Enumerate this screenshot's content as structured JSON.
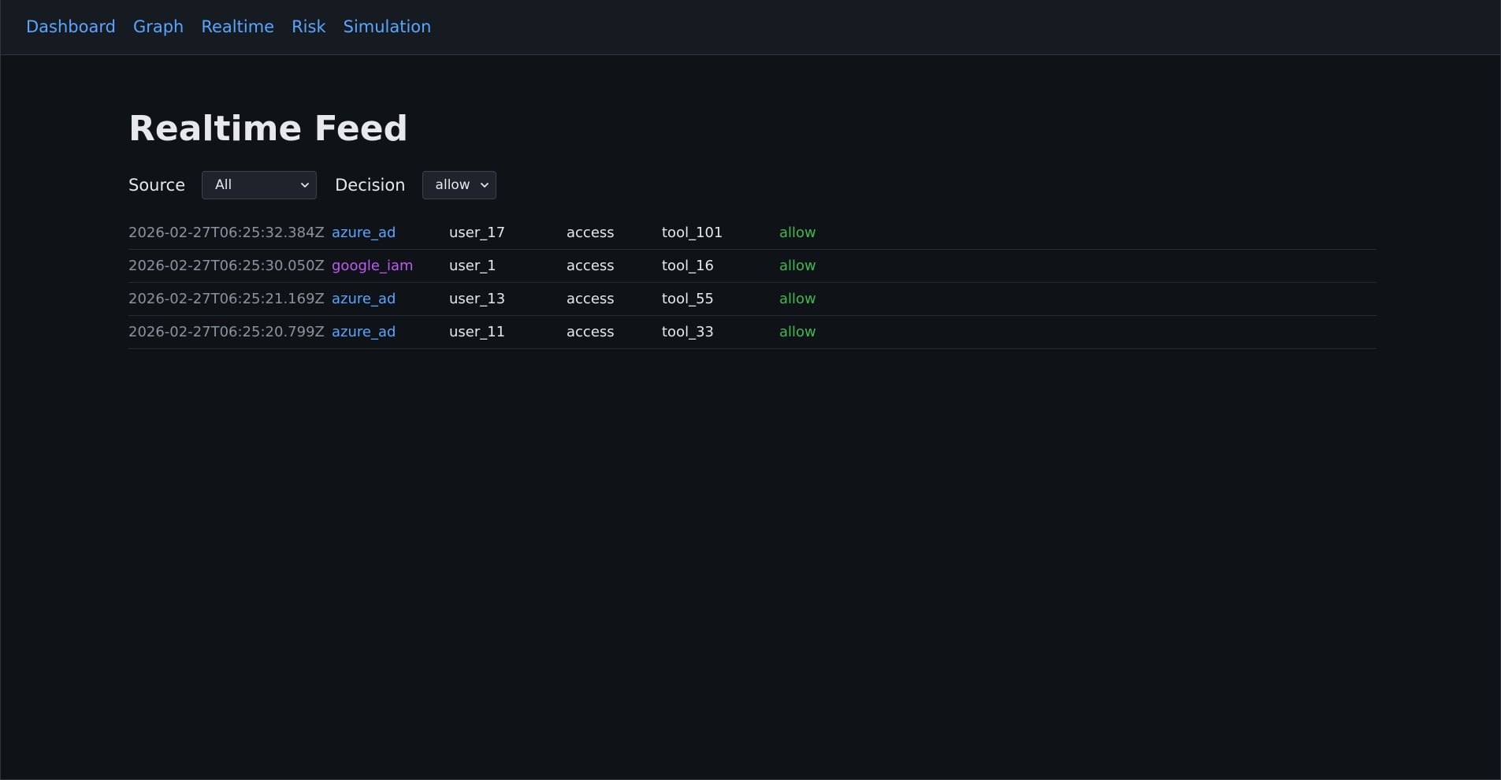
{
  "nav": {
    "items": [
      "Dashboard",
      "Graph",
      "Realtime",
      "Risk",
      "Simulation"
    ]
  },
  "page": {
    "title": "Realtime Feed"
  },
  "filters": {
    "source_label": "Source",
    "source_value": "All",
    "decision_label": "Decision",
    "decision_value": "allow"
  },
  "colors": {
    "link": "#58a6ff",
    "azure_ad": "#58a6ff",
    "google_iam": "#bc5cf3",
    "allow": "#3fb950",
    "timestamp": "#8b949e"
  },
  "feed": {
    "rows": [
      {
        "timestamp": "2026-02-27T06:25:32.384Z",
        "source": "azure_ad",
        "user": "user_17",
        "action": "access",
        "tool": "tool_101",
        "decision": "allow"
      },
      {
        "timestamp": "2026-02-27T06:25:30.050Z",
        "source": "google_iam",
        "user": "user_1",
        "action": "access",
        "tool": "tool_16",
        "decision": "allow"
      },
      {
        "timestamp": "2026-02-27T06:25:21.169Z",
        "source": "azure_ad",
        "user": "user_13",
        "action": "access",
        "tool": "tool_55",
        "decision": "allow"
      },
      {
        "timestamp": "2026-02-27T06:25:20.799Z",
        "source": "azure_ad",
        "user": "user_11",
        "action": "access",
        "tool": "tool_33",
        "decision": "allow"
      }
    ]
  }
}
